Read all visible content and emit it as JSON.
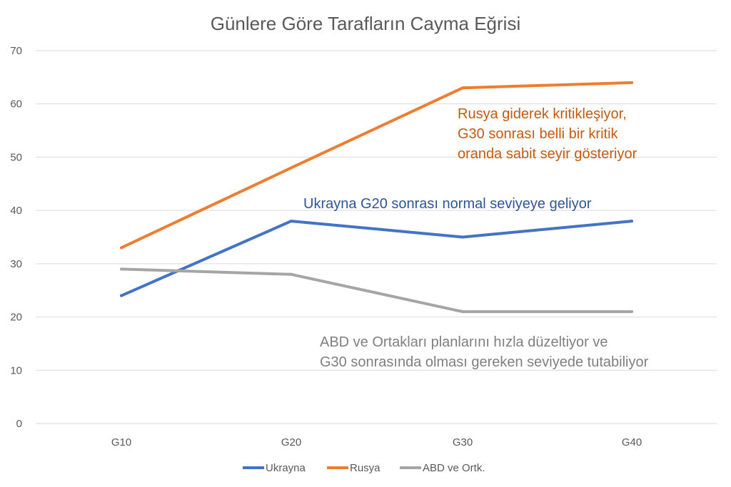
{
  "chart_data": {
    "type": "line",
    "title": "Günlere Göre Tarafların Cayma Eğrisi",
    "categories": [
      "G10",
      "G20",
      "G30",
      "G40"
    ],
    "ylim": [
      0,
      70
    ],
    "yticks": [
      0,
      10,
      20,
      30,
      40,
      50,
      60,
      70
    ],
    "xlabel": "",
    "ylabel": "",
    "grid": true,
    "legend_position": "bottom",
    "series": [
      {
        "name": "Ukrayna",
        "color": "#4472c4",
        "values": [
          24,
          38,
          35,
          38
        ]
      },
      {
        "name": "Rusya",
        "color": "#ed7d31",
        "values": [
          33,
          48,
          63,
          64
        ]
      },
      {
        "name": "ABD ve Ortk.",
        "color": "#a5a5a5",
        "values": [
          29,
          28,
          21,
          21
        ]
      }
    ],
    "annotations": [
      {
        "color": "#c55a11",
        "lines": [
          "Rusya giderek kritikleşiyor,",
          "G30 sonrası belli bir kritik",
          "oranda sabit seyir gösteriyor"
        ]
      },
      {
        "color": "#2f5597",
        "lines": [
          "Ukrayna G20 sonrası normal seviyeye geliyor"
        ]
      },
      {
        "color": "#7f7f7f",
        "lines": [
          "ABD ve Ortakları planlarını hızla düzeltiyor ve",
          "G30 sonrasında olması gereken seviyede tutabiliyor"
        ]
      }
    ]
  }
}
